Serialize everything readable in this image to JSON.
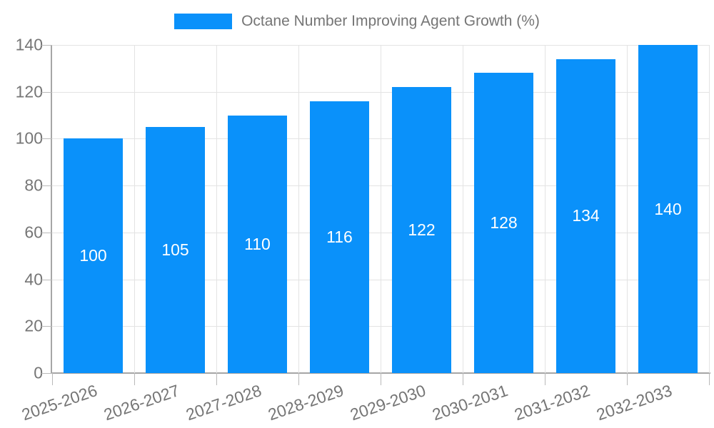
{
  "chart_data": {
    "type": "bar",
    "title": "Octane Number Improving Agent Growth (%)",
    "categories": [
      "2025-2026",
      "2026-2027",
      "2027-2028",
      "2028-2029",
      "2029-2030",
      "2030-2031",
      "2031-2032",
      "2032-2033"
    ],
    "values": [
      100,
      105,
      110,
      116,
      122,
      128,
      134,
      140
    ],
    "xlabel": "",
    "ylabel": "",
    "ylim": [
      0,
      140
    ],
    "yticks": [
      0,
      20,
      40,
      60,
      80,
      100,
      120,
      140
    ],
    "grid": true,
    "legend_position": "top-center",
    "value_labels": "inside-center",
    "colors": {
      "bar": "#0a91fa",
      "text": "#757575",
      "grid": "#e3e3e3",
      "axis": "#a6a6a6",
      "tick": "#b9b9b9",
      "value_label": "#ffffff"
    }
  }
}
